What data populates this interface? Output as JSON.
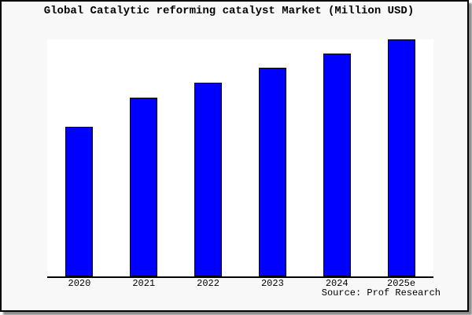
{
  "window": {
    "background_color": "#f8f8f8",
    "plot_background_color": "#ffffff",
    "border_color": "#000000"
  },
  "chart_data": {
    "type": "bar",
    "title": "Global Catalytic reforming catalyst Market (Million USD)",
    "categories": [
      "2020",
      "2021",
      "2022",
      "2023",
      "2024",
      "2025e"
    ],
    "values": [
      63.1,
      75.4,
      81.7,
      88.0,
      94.0,
      100.0
    ],
    "values_note": "relative bar heights as % of tallest bar (2025e); the chart shows no y-axis scale or numeric data labels",
    "unit": "Million USD (absolute values not labeled on chart)",
    "xlabel": "",
    "ylabel": "",
    "legend_position": "none",
    "grid": false,
    "axes_shown": [
      "bottom"
    ],
    "bar_color": "#0000ff",
    "bar_border_color": "#000000"
  },
  "footer": {
    "source_label": "Source: Prof Research"
  }
}
